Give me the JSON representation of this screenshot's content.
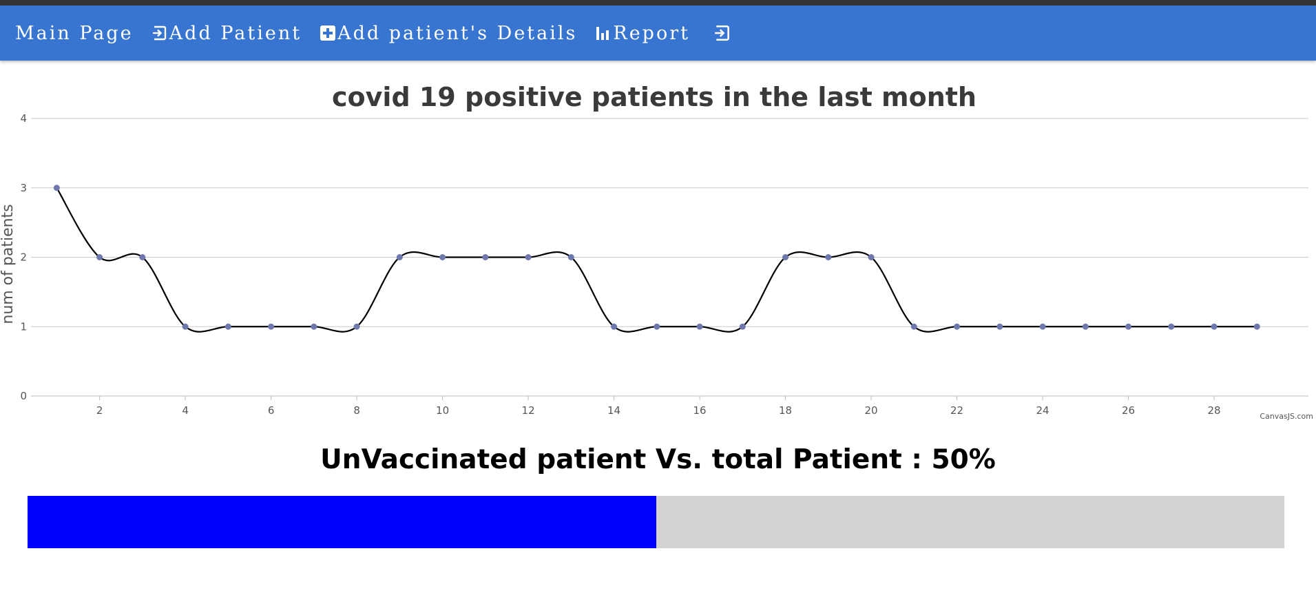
{
  "nav": {
    "main_page": "Main Page",
    "add_patient": "Add Patient",
    "add_details": "Add patient's Details",
    "report": "Report",
    "logout_icon": "sign-out-icon"
  },
  "colors": {
    "navbar": "#3875d0",
    "progress_fill": "#0000ff",
    "progress_track": "#d3d3d3",
    "line": "#000000",
    "marker": "#6d78ad"
  },
  "chart_data": {
    "type": "line",
    "title": "covid 19 positive patients in the last month",
    "ylabel": "num of patients",
    "xlabel": "",
    "x": [
      1,
      2,
      3,
      4,
      5,
      6,
      7,
      8,
      9,
      10,
      11,
      12,
      13,
      14,
      15,
      16,
      17,
      18,
      19,
      20,
      21,
      22,
      23,
      24,
      25,
      26,
      27,
      28,
      29
    ],
    "values": [
      3,
      2,
      2,
      1,
      1,
      1,
      1,
      1,
      2,
      2,
      2,
      2,
      2,
      1,
      1,
      1,
      1,
      2,
      2,
      2,
      1,
      1,
      1,
      1,
      1,
      1,
      1,
      1,
      1
    ],
    "xlim": [
      0.4,
      30.2
    ],
    "ylim": [
      0,
      4
    ],
    "x_ticks": [
      2,
      4,
      6,
      8,
      10,
      12,
      14,
      16,
      18,
      20,
      22,
      24,
      26,
      28
    ],
    "y_ticks": [
      0,
      1,
      2,
      3,
      4
    ],
    "grid": "horizontal",
    "smooth": true,
    "credit": "CanvasJS.com"
  },
  "progress": {
    "label": "UnVaccinated patient Vs. total Patient : 50%",
    "value": 0.5
  }
}
